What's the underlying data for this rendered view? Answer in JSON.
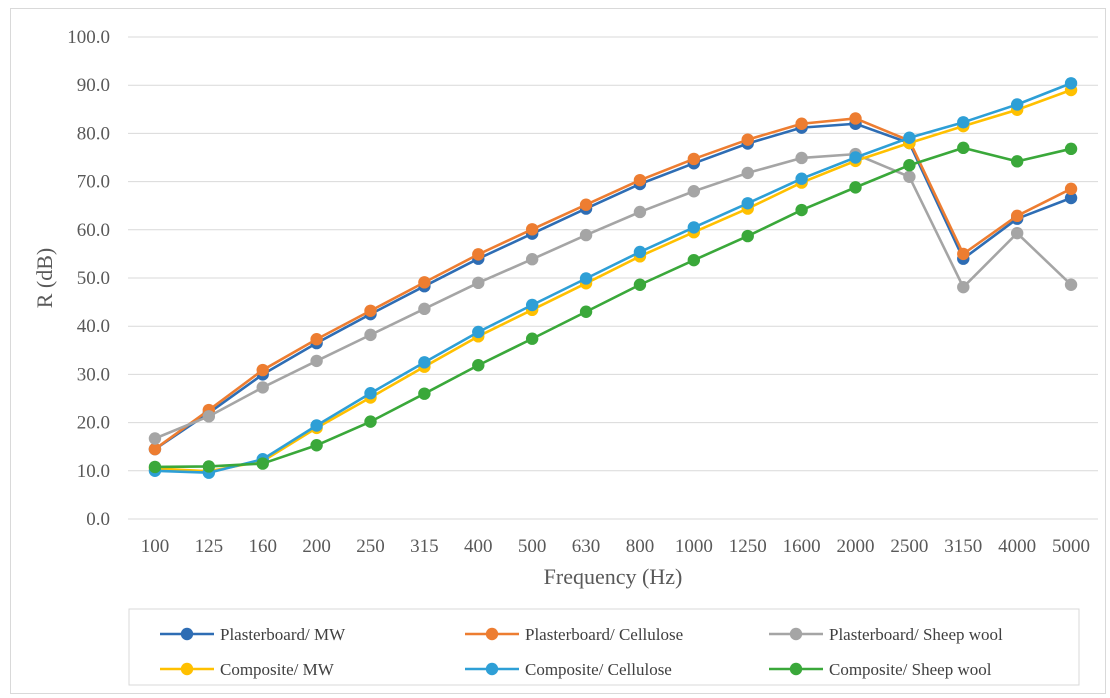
{
  "chart_data": {
    "type": "line",
    "title": "",
    "xlabel": "Frequency (Hz)",
    "ylabel": "R (dB)",
    "ylim": [
      0,
      100
    ],
    "y_ticks": [
      "0.0",
      "10.0",
      "20.0",
      "30.0",
      "40.0",
      "50.0",
      "60.0",
      "70.0",
      "80.0",
      "90.0",
      "100.0"
    ],
    "grid": "horizontal",
    "legend_position": "bottom",
    "categories": [
      "100",
      "125",
      "160",
      "200",
      "250",
      "315",
      "400",
      "500",
      "630",
      "800",
      "1000",
      "1250",
      "1600",
      "2000",
      "2500",
      "3150",
      "4000",
      "5000"
    ],
    "series": [
      {
        "name": "Plasterboard/ MW",
        "color": "#2e6db4",
        "values": [
          14.5,
          22.0,
          30.0,
          36.5,
          42.5,
          48.3,
          54.0,
          59.2,
          64.4,
          69.5,
          73.8,
          77.9,
          81.2,
          82.0,
          78.0,
          54.0,
          62.3,
          66.6
        ]
      },
      {
        "name": "Plasterboard/ Cellulose",
        "color": "#ed7d31",
        "values": [
          14.5,
          22.6,
          30.9,
          37.3,
          43.2,
          49.1,
          54.9,
          60.1,
          65.2,
          70.3,
          74.7,
          78.7,
          82.0,
          83.1,
          78.5,
          55.0,
          62.9,
          68.5
        ]
      },
      {
        "name": "Plasterboard/ Sheep wool",
        "color": "#a5a5a5",
        "values": [
          16.7,
          21.3,
          27.3,
          32.8,
          38.2,
          43.6,
          49.0,
          53.9,
          58.9,
          63.7,
          68.0,
          71.8,
          74.9,
          75.7,
          71.0,
          48.1,
          59.3,
          48.6
        ]
      },
      {
        "name": "Composite/ MW",
        "color": "#ffc000",
        "values": [
          10.5,
          9.9,
          12.0,
          18.9,
          25.2,
          31.6,
          37.9,
          43.4,
          48.9,
          54.5,
          59.5,
          64.4,
          69.8,
          74.3,
          78.0,
          81.5,
          84.9,
          89.0
        ]
      },
      {
        "name": "Composite/ Cellulose",
        "color": "#2e9fd6",
        "values": [
          10.0,
          9.6,
          12.4,
          19.4,
          26.1,
          32.5,
          38.8,
          44.4,
          49.9,
          55.4,
          60.5,
          65.5,
          70.6,
          75.0,
          79.1,
          82.3,
          86.0,
          90.4
        ]
      },
      {
        "name": "Composite/ Sheep wool",
        "color": "#3aa83a",
        "values": [
          10.8,
          10.9,
          11.5,
          15.3,
          20.2,
          26.0,
          31.9,
          37.4,
          43.0,
          48.6,
          53.7,
          58.7,
          64.1,
          68.8,
          73.4,
          77.0,
          74.2,
          76.8
        ]
      }
    ]
  }
}
